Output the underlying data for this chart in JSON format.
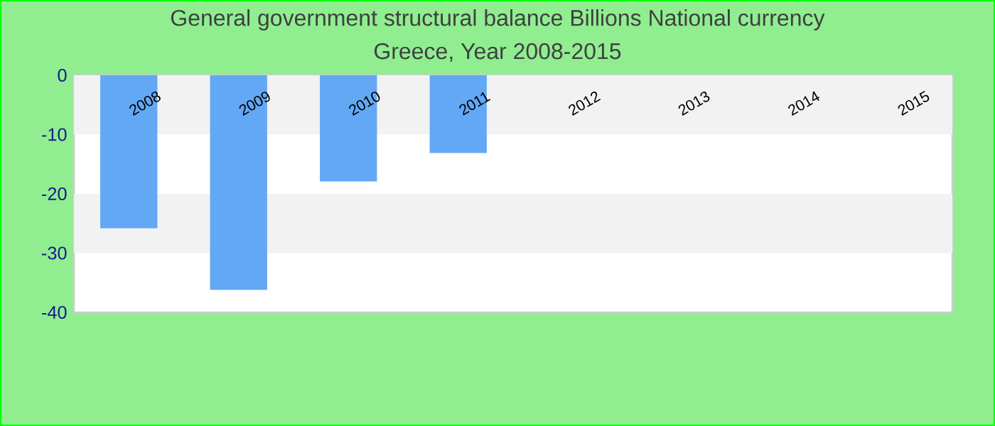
{
  "chart_data": {
    "type": "bar",
    "title": "General government structural balance Billions National currency",
    "subtitle": "Greece, Year 2008-2015",
    "categories": [
      "2008",
      "2009",
      "2010",
      "2011",
      "2012",
      "2013",
      "2014",
      "2015"
    ],
    "values": [
      -25.8,
      -36.2,
      -17.9,
      -13.1,
      null,
      null,
      null,
      null
    ],
    "color": "#62a8f5",
    "ylim": [
      -40,
      0
    ],
    "yticks": [
      -40,
      -30,
      -20,
      -10,
      0
    ],
    "bands": [
      {
        "axis": "y",
        "from": -10,
        "to": 0,
        "color": "#f2f2f2"
      },
      {
        "axis": "y",
        "from": -30,
        "to": -20,
        "color": "#f2f2f2"
      }
    ]
  }
}
